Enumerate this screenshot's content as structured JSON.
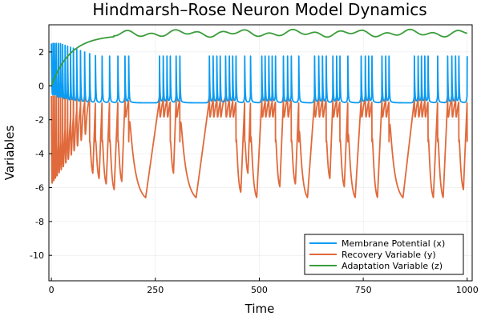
{
  "chart_data": {
    "type": "line",
    "title": "Hindmarsh–Rose Neuron Model Dynamics",
    "xlabel": "Time",
    "ylabel": "Variables",
    "xlim": [
      -6,
      1012
    ],
    "ylim": [
      -11.5,
      3.6
    ],
    "xticks": [
      0,
      250,
      500,
      750,
      1000
    ],
    "xtick_labels": [
      "0",
      "250",
      "500",
      "750",
      "1000"
    ],
    "yticks": [
      2,
      0,
      -2,
      -4,
      -6,
      -8,
      -10
    ],
    "ytick_labels": [
      "2",
      "0",
      "-2",
      "-4",
      "-6",
      "-8",
      "-10"
    ],
    "grid": true,
    "legend_position": "bottom-right",
    "series": [
      {
        "name": "Membrane Potential (x)",
        "color": "#0a9bf2"
      },
      {
        "name": "Recovery Variable (y)",
        "color": "#e06a3b"
      },
      {
        "name": "Adaptation Variable (z)",
        "color": "#3a9c3a"
      }
    ],
    "spike_times": [
      0,
      4,
      8,
      12,
      17,
      22,
      27,
      33,
      39,
      46,
      53,
      61,
      70,
      80,
      92,
      106,
      122,
      140,
      160,
      177,
      186,
      260,
      269,
      278,
      286,
      300,
      309,
      380,
      389,
      398,
      406,
      419,
      428,
      436,
      444,
      465,
      479,
      506,
      514,
      523,
      531,
      539,
      558,
      568,
      577,
      595,
      633,
      643,
      652,
      661,
      677,
      686,
      694,
      713,
      745,
      755,
      763,
      771,
      795,
      804,
      812,
      873,
      882,
      890,
      898,
      906,
      929,
      953,
      963,
      972,
      980,
      1000
    ],
    "notes_series_peaks": {
      "x_peak": 1.6,
      "x_rest": -1.0,
      "z_min": 3.05,
      "z_max": 3.35
    }
  }
}
